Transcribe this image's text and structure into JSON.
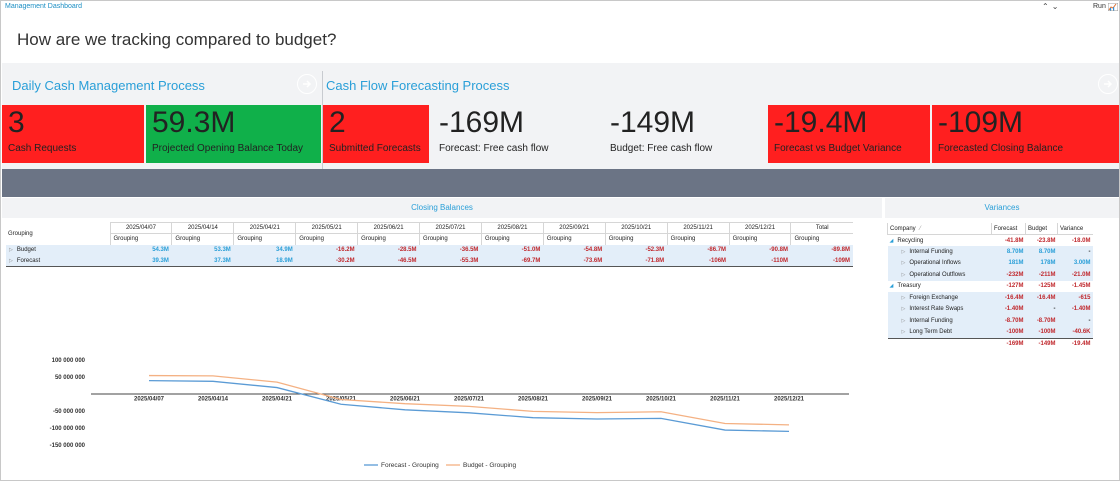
{
  "app": {
    "title": "Management Dashboard",
    "run_label": "Run"
  },
  "header": {
    "question": "How are we tracking compared to budget?"
  },
  "sections": {
    "daily": {
      "title": "Daily Cash Management Process"
    },
    "forecasting": {
      "title": "Cash Flow Forecasting Process"
    }
  },
  "kpis": {
    "cash_requests": {
      "value": "3",
      "label": "Cash Requests"
    },
    "opening_balance": {
      "value": "59.3M",
      "label": "Projected Opening Balance Today"
    },
    "submitted_forecasts": {
      "value": "2",
      "label": "Submitted Forecasts"
    },
    "forecast_fcf": {
      "value": "-169M",
      "label": "Forecast: Free cash flow"
    },
    "budget_fcf": {
      "value": "-149M",
      "label": "Budget: Free cash flow"
    },
    "variance": {
      "value": "-19.4M",
      "label": "Forecast vs Budget Variance"
    },
    "closing_balance": {
      "value": "-109M",
      "label": "Forecasted Closing Balance"
    }
  },
  "closing_balances": {
    "title": "Closing Balances",
    "row_header": "Grouping",
    "columns": [
      "2025/04/07",
      "2025/04/14",
      "2025/04/21",
      "2025/05/21",
      "2025/06/21",
      "2025/07/21",
      "2025/08/21",
      "2025/09/21",
      "2025/10/21",
      "2025/11/21",
      "2025/12/21",
      "Total"
    ],
    "sub_header": "Grouping",
    "rows": [
      {
        "name": "Budget",
        "values": [
          "54.3M",
          "53.3M",
          "34.9M",
          "-16.2M",
          "-28.5M",
          "-36.5M",
          "-51.0M",
          "-54.8M",
          "-52.3M",
          "-86.7M",
          "-90.8M",
          "-89.8M"
        ]
      },
      {
        "name": "Forecast",
        "values": [
          "39.3M",
          "37.3M",
          "18.9M",
          "-30.2M",
          "-46.5M",
          "-55.3M",
          "-69.7M",
          "-73.6M",
          "-71.8M",
          "-106M",
          "-110M",
          "-109M"
        ]
      }
    ]
  },
  "variances": {
    "title": "Variances",
    "headers": [
      "Company",
      "Forecast",
      "Budget",
      "Variance"
    ],
    "rows": [
      {
        "type": "parent",
        "name": "Recycling",
        "forecast": "-41.8M",
        "budget": "-23.8M",
        "variance": "-18.0M"
      },
      {
        "type": "child",
        "name": "Internal Funding",
        "forecast": "8.70M",
        "budget": "8.70M",
        "variance": "-"
      },
      {
        "type": "child",
        "name": "Operational Inflows",
        "forecast": "181M",
        "budget": "178M",
        "variance": "3.00M"
      },
      {
        "type": "child",
        "name": "Operational Outflows",
        "forecast": "-232M",
        "budget": "-211M",
        "variance": "-21.0M"
      },
      {
        "type": "parent",
        "name": "Treasury",
        "forecast": "-127M",
        "budget": "-125M",
        "variance": "-1.45M"
      },
      {
        "type": "child",
        "name": "Foreign Exchange",
        "forecast": "-16.4M",
        "budget": "-16.4M",
        "variance": "-615"
      },
      {
        "type": "child",
        "name": "Interest Rate Swaps",
        "forecast": "-1.40M",
        "budget": "-",
        "variance": "-1.40M"
      },
      {
        "type": "child",
        "name": "Internal Funding",
        "forecast": "-8.70M",
        "budget": "-8.70M",
        "variance": "-"
      },
      {
        "type": "child",
        "name": "Long Term Debt",
        "forecast": "-100M",
        "budget": "-100M",
        "variance": "-40.6K"
      },
      {
        "type": "total",
        "name": "",
        "forecast": "-169M",
        "budget": "-149M",
        "variance": "-19.4M"
      }
    ]
  },
  "colors": {
    "red": "#ff1f1f",
    "green": "#10b04a",
    "accent": "#2a9fd8",
    "negative": "#c0282d",
    "forecast_line": "#5b9bd5",
    "budget_line": "#f4b183"
  },
  "chart_data": {
    "type": "line",
    "categories": [
      "2025/04/07",
      "2025/04/14",
      "2025/04/21",
      "2025/05/21",
      "2025/06/21",
      "2025/07/21",
      "2025/08/21",
      "2025/09/21",
      "2025/10/21",
      "2025/11/21",
      "2025/12/21"
    ],
    "series": [
      {
        "name": "Forecast - Grouping",
        "values": [
          39300000,
          37300000,
          18900000,
          -30200000,
          -46500000,
          -55300000,
          -69700000,
          -73600000,
          -71800000,
          -106000000,
          -110000000
        ]
      },
      {
        "name": "Budget - Grouping",
        "values": [
          54300000,
          53300000,
          34900000,
          -16200000,
          -28500000,
          -36500000,
          -51000000,
          -54800000,
          -52300000,
          -86700000,
          -90800000
        ]
      }
    ],
    "y_ticks": [
      "100 000 000",
      "50 000 000",
      "-50 000 000",
      "-100 000 000",
      "-150 000 000"
    ],
    "y_tick_values": [
      100000000,
      50000000,
      -50000000,
      -100000000,
      -150000000
    ],
    "ylim": [
      -150000000,
      100000000
    ],
    "legend": "bottom",
    "grid": false
  }
}
